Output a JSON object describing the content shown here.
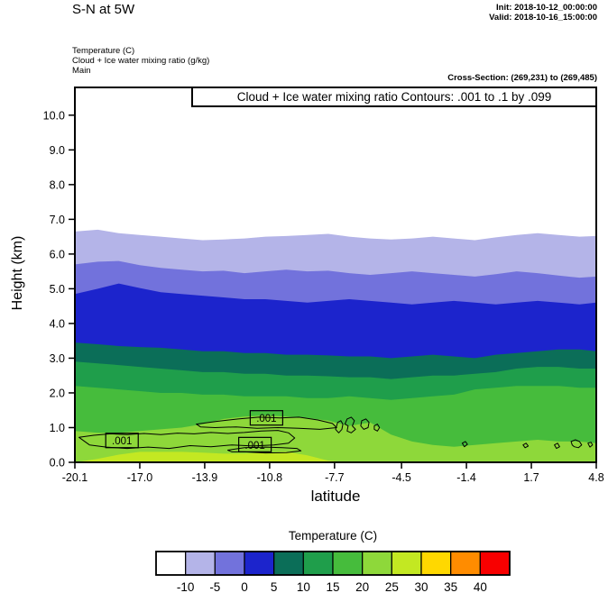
{
  "header": {
    "title": "S-N at 5W",
    "init": "Init: 2018-10-12_00:00:00",
    "valid": "Valid: 2018-10-16_15:00:00",
    "field_lines": [
      "Temperature (C)",
      "Cloud + Ice water mixing ratio (g/kg)",
      "Main"
    ],
    "cross_section": "Cross-Section: (269,231) to (269,485)"
  },
  "chart_data": {
    "type": "filled-contour-cross-section",
    "title": "Cloud + Ice water mixing ratio Contours: .001 to .1 by .099",
    "xlabel": "latitude",
    "ylabel": "Height (km)",
    "x_range": [
      -20.1,
      4.8
    ],
    "y_range": [
      0,
      10.8
    ],
    "x_ticks": [
      "-20.1",
      "-17.0",
      "-13.9",
      "-10.8",
      "-7.7",
      "-4.5",
      "-1.4",
      "1.7",
      "4.8"
    ],
    "x_tick_values": [
      -20.1,
      -17.0,
      -13.9,
      -10.8,
      -7.7,
      -4.5,
      -1.4,
      1.7,
      4.8
    ],
    "y_ticks": [
      "0.0",
      "1.0",
      "2.0",
      "3.0",
      "4.0",
      "5.0",
      "6.0",
      "7.0",
      "8.0",
      "9.0",
      "10.0"
    ],
    "y_tick_values": [
      0,
      1,
      2,
      3,
      4,
      5,
      6,
      7,
      8,
      9,
      10
    ],
    "temperature_field": {
      "lats": [
        -20.1,
        -19,
        -18,
        -17,
        -16,
        -15,
        -14,
        -13,
        -12,
        -11,
        -10,
        -9,
        -8,
        -7,
        -6,
        -5,
        -4,
        -3,
        -2,
        -1,
        0,
        1,
        2,
        3,
        4,
        4.8
      ],
      "boundaries": [
        {
          "level": -10,
          "heights": [
            6.65,
            6.7,
            6.6,
            6.55,
            6.5,
            6.45,
            6.4,
            6.42,
            6.45,
            6.5,
            6.52,
            6.55,
            6.58,
            6.5,
            6.45,
            6.42,
            6.45,
            6.5,
            6.45,
            6.4,
            6.48,
            6.55,
            6.6,
            6.55,
            6.5,
            6.52
          ]
        },
        {
          "level": -5,
          "heights": [
            5.7,
            5.78,
            5.8,
            5.68,
            5.6,
            5.55,
            5.5,
            5.52,
            5.45,
            5.5,
            5.55,
            5.5,
            5.52,
            5.45,
            5.4,
            5.45,
            5.5,
            5.45,
            5.4,
            5.35,
            5.42,
            5.5,
            5.45,
            5.38,
            5.32,
            5.35
          ]
        },
        {
          "level": 0,
          "heights": [
            4.85,
            5.0,
            5.15,
            5.02,
            4.9,
            4.85,
            4.8,
            4.75,
            4.7,
            4.7,
            4.65,
            4.6,
            4.65,
            4.7,
            4.65,
            4.6,
            4.55,
            4.6,
            4.65,
            4.6,
            4.55,
            4.6,
            4.65,
            4.6,
            4.55,
            4.6
          ]
        },
        {
          "level": 5,
          "heights": [
            3.45,
            3.4,
            3.35,
            3.32,
            3.3,
            3.25,
            3.2,
            3.2,
            3.15,
            3.15,
            3.1,
            3.1,
            3.08,
            3.05,
            3.05,
            3.0,
            3.05,
            3.1,
            3.05,
            3.0,
            3.1,
            3.15,
            3.2,
            3.25,
            3.25,
            3.2
          ]
        },
        {
          "level": 10,
          "heights": [
            2.9,
            2.85,
            2.8,
            2.75,
            2.7,
            2.65,
            2.6,
            2.6,
            2.55,
            2.55,
            2.5,
            2.5,
            2.48,
            2.45,
            2.45,
            2.4,
            2.45,
            2.5,
            2.5,
            2.55,
            2.6,
            2.7,
            2.75,
            2.75,
            2.7,
            2.7
          ]
        },
        {
          "level": 15,
          "heights": [
            2.2,
            2.15,
            2.1,
            2.05,
            2.0,
            2.0,
            1.95,
            1.95,
            1.9,
            1.9,
            1.9,
            1.85,
            1.85,
            1.9,
            1.85,
            1.8,
            1.85,
            1.9,
            1.95,
            2.1,
            2.15,
            2.2,
            2.2,
            2.2,
            2.15,
            2.15
          ]
        },
        {
          "level": 20,
          "heights": [
            0.9,
            0.85,
            0.85,
            0.9,
            0.95,
            1.0,
            1.1,
            1.25,
            1.32,
            1.35,
            1.32,
            1.28,
            1.2,
            1.05,
            1.15,
            0.8,
            0.6,
            0.5,
            0.45,
            0.5,
            0.55,
            0.6,
            0.65,
            0.6,
            0.6,
            0.55
          ]
        },
        {
          "level": 25,
          "heights": [
            0.0,
            0.1,
            0.22,
            0.3,
            0.3,
            0.3,
            0.28,
            0.25,
            0.25,
            0.28,
            0.3,
            0.2,
            0.05,
            0.0,
            0.0,
            0.0,
            0.0,
            0.0,
            0.0,
            0.0,
            0.0,
            0.0,
            0.0,
            0.0,
            0.0,
            0.0
          ]
        }
      ]
    },
    "cloud_contours": {
      "paths": [
        [
          [
            -19.9,
            0.72
          ],
          [
            -19.2,
            0.78
          ],
          [
            -18.4,
            0.82
          ],
          [
            -17.6,
            0.8
          ],
          [
            -16.8,
            0.83
          ],
          [
            -16,
            0.8
          ],
          [
            -15.2,
            0.84
          ],
          [
            -14.4,
            0.82
          ],
          [
            -13.6,
            0.86
          ],
          [
            -12.8,
            0.83
          ],
          [
            -12,
            0.86
          ],
          [
            -11.2,
            0.9
          ],
          [
            -10.4,
            0.92
          ],
          [
            -9.9,
            0.85
          ],
          [
            -9.6,
            0.7
          ],
          [
            -9.9,
            0.55
          ],
          [
            -10.6,
            0.5
          ],
          [
            -11.6,
            0.47
          ],
          [
            -12.6,
            0.5
          ],
          [
            -13.6,
            0.45
          ],
          [
            -14.6,
            0.48
          ],
          [
            -15.6,
            0.4
          ],
          [
            -16.6,
            0.44
          ],
          [
            -17.6,
            0.4
          ],
          [
            -18.6,
            0.44
          ],
          [
            -19.4,
            0.5
          ]
        ],
        [
          [
            -14.3,
            1.1
          ],
          [
            -13.3,
            1.18
          ],
          [
            -12.3,
            1.25
          ],
          [
            -11.3,
            1.3
          ],
          [
            -10.3,
            1.28
          ],
          [
            -9.4,
            1.3
          ],
          [
            -8.5,
            1.22
          ],
          [
            -7.8,
            1.12
          ],
          [
            -7.6,
            1.0
          ],
          [
            -8.4,
            0.95
          ],
          [
            -9.4,
            0.98
          ],
          [
            -10.4,
            1.0
          ],
          [
            -11.4,
            0.98
          ],
          [
            -12.4,
            1.02
          ],
          [
            -13.4,
            1.0
          ],
          [
            -14.1,
            1.02
          ]
        ],
        [
          [
            -12.8,
            0.35
          ],
          [
            -12,
            0.42
          ],
          [
            -11,
            0.44
          ],
          [
            -10.2,
            0.42
          ],
          [
            -9.5,
            0.4
          ],
          [
            -9.3,
            0.33
          ],
          [
            -10,
            0.28
          ],
          [
            -11,
            0.27
          ],
          [
            -12,
            0.3
          ],
          [
            -12.6,
            0.3
          ]
        ],
        [
          [
            -7.55,
            1.15
          ],
          [
            -7.4,
            1.2
          ],
          [
            -7.3,
            1.1
          ],
          [
            -7.35,
            0.95
          ],
          [
            -7.5,
            0.85
          ],
          [
            -7.65,
            0.95
          ],
          [
            -7.6,
            1.05
          ]
        ],
        [
          [
            -7.1,
            1.25
          ],
          [
            -6.9,
            1.3
          ],
          [
            -6.75,
            1.2
          ],
          [
            -6.85,
            1.05
          ],
          [
            -6.7,
            0.95
          ],
          [
            -6.9,
            0.85
          ],
          [
            -7.1,
            0.9
          ],
          [
            -7.05,
            1.05
          ],
          [
            -7.2,
            1.1
          ]
        ],
        [
          [
            -6.4,
            1.2
          ],
          [
            -6.2,
            1.25
          ],
          [
            -6.05,
            1.15
          ],
          [
            -6.1,
            1.0
          ],
          [
            -6.3,
            0.95
          ],
          [
            -6.45,
            1.05
          ]
        ],
        [
          [
            -5.8,
            1.05
          ],
          [
            -5.65,
            1.1
          ],
          [
            -5.55,
            1.0
          ],
          [
            -5.65,
            0.9
          ],
          [
            -5.8,
            0.95
          ]
        ],
        [
          [
            -1.6,
            0.55
          ],
          [
            -1.45,
            0.6
          ],
          [
            -1.35,
            0.52
          ],
          [
            -1.5,
            0.45
          ]
        ],
        [
          [
            1.3,
            0.5
          ],
          [
            1.45,
            0.55
          ],
          [
            1.55,
            0.47
          ],
          [
            1.4,
            0.42
          ]
        ],
        [
          [
            2.8,
            0.5
          ],
          [
            2.95,
            0.55
          ],
          [
            3.05,
            0.45
          ],
          [
            2.9,
            0.4
          ]
        ],
        [
          [
            3.6,
            0.6
          ],
          [
            3.8,
            0.65
          ],
          [
            4.0,
            0.6
          ],
          [
            4.1,
            0.5
          ],
          [
            3.95,
            0.42
          ],
          [
            3.75,
            0.45
          ],
          [
            3.65,
            0.5
          ]
        ],
        [
          [
            4.4,
            0.55
          ],
          [
            4.55,
            0.58
          ],
          [
            4.62,
            0.5
          ],
          [
            4.5,
            0.44
          ]
        ]
      ],
      "labels": [
        {
          "text": ".001",
          "lat": -17.85,
          "h": 0.63
        },
        {
          "text": ".001",
          "lat": -10.95,
          "h": 1.28
        },
        {
          "text": ".001",
          "lat": -11.5,
          "h": 0.51
        }
      ]
    },
    "colorbar": {
      "title": "Temperature (C)",
      "colors": [
        "#ffffff",
        "#b4b4e8",
        "#7272dc",
        "#1c24cc",
        "#0b6e58",
        "#1f9e4b",
        "#46bc3c",
        "#8ed83a",
        "#c3e822",
        "#ffd800",
        "#ff8c00",
        "#f80000"
      ],
      "tick_labels": [
        "-10",
        "-5",
        "0",
        "5",
        "10",
        "15",
        "20",
        "25",
        "30",
        "35",
        "40"
      ]
    }
  }
}
